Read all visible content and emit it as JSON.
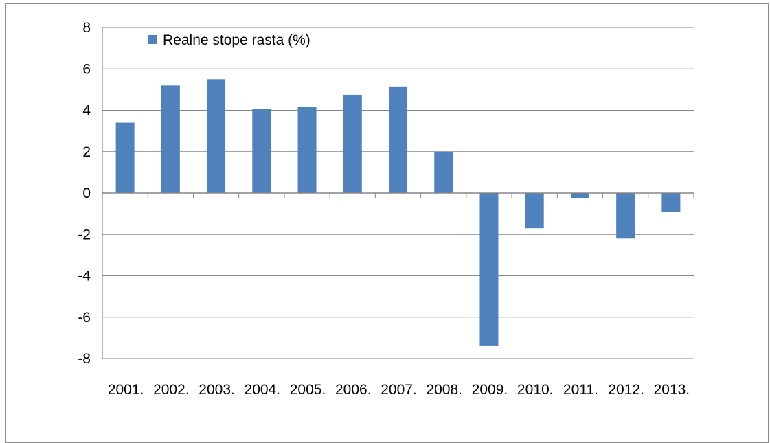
{
  "colors": {
    "bar": "#4f81bd",
    "grid": "#868686",
    "axis": "#868686",
    "background": "#ffffff"
  },
  "legend": {
    "label": "Realne stope rasta (%)",
    "placement": "top-left inside plot"
  },
  "chart_data": {
    "type": "bar",
    "title": "",
    "xlabel": "",
    "ylabel": "",
    "categories": [
      "2001.",
      "2002.",
      "2003.",
      "2004.",
      "2005.",
      "2006.",
      "2007.",
      "2008.",
      "2009.",
      "2010.",
      "2011.",
      "2012.",
      "2013."
    ],
    "series": [
      {
        "name": "Realne stope rasta (%)",
        "values": [
          3.4,
          5.2,
          5.5,
          4.05,
          4.15,
          4.75,
          5.15,
          2.0,
          -7.4,
          -1.7,
          -0.25,
          -2.2,
          -0.9
        ]
      }
    ],
    "ylim": [
      -8,
      8
    ],
    "yticks": [
      "8",
      "6",
      "4",
      "2",
      "0",
      "-2",
      "-4",
      "-6",
      "-8"
    ],
    "grid": true
  }
}
